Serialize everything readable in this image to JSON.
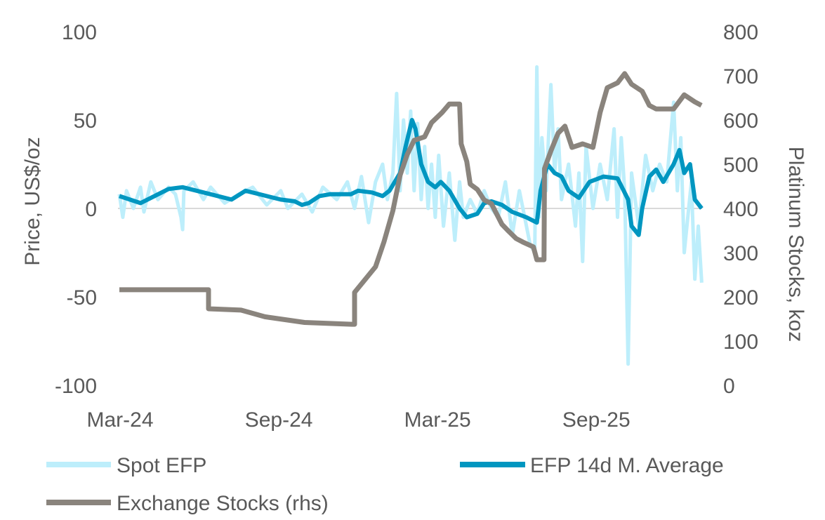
{
  "chart_data": {
    "type": "line",
    "x_unit": "months since Mar-24",
    "x_ticks": [
      {
        "label": "Mar-24",
        "m": 0
      },
      {
        "label": "Sep-24",
        "m": 6
      },
      {
        "label": "Mar-25",
        "m": 12
      },
      {
        "label": "Sep-25",
        "m": 18
      }
    ],
    "xlim": [
      0,
      22
    ],
    "ylabel": "Price, US$/oz",
    "ylim": [
      -100,
      100
    ],
    "y_ticks": [
      {
        "label": "100",
        "v": 100
      },
      {
        "label": "50",
        "v": 50
      },
      {
        "label": "0",
        "v": 0
      },
      {
        "label": "-50",
        "v": -50
      },
      {
        "label": "-100",
        "v": -100
      }
    ],
    "y2label": "Platinum Stocks, koz",
    "y2lim": [
      0,
      800
    ],
    "y2_ticks": [
      {
        "label": "800",
        "v": 800
      },
      {
        "label": "700",
        "v": 700
      },
      {
        "label": "600",
        "v": 600
      },
      {
        "label": "500",
        "v": 500
      },
      {
        "label": "400",
        "v": 400
      },
      {
        "label": "300",
        "v": 300
      },
      {
        "label": "200",
        "v": 200
      },
      {
        "label": "100",
        "v": 100
      },
      {
        "label": "0",
        "v": 0
      }
    ],
    "legend_position": "bottom",
    "series": [
      {
        "name": "Spot EFP",
        "axis": "left",
        "color": "#bdeefb",
        "points": [
          [
            0,
            8
          ],
          [
            0.13,
            -5
          ],
          [
            0.27,
            10
          ],
          [
            0.53,
            0
          ],
          [
            0.8,
            12
          ],
          [
            0.93,
            -2
          ],
          [
            1.19,
            15
          ],
          [
            1.46,
            5
          ],
          [
            1.86,
            12
          ],
          [
            2.12,
            8
          ],
          [
            2.33,
            -5
          ],
          [
            2.39,
            -12
          ],
          [
            2.44,
            10
          ],
          [
            2.79,
            15
          ],
          [
            3.18,
            5
          ],
          [
            3.45,
            12
          ],
          [
            3.98,
            3
          ],
          [
            4.51,
            8
          ],
          [
            5.04,
            12
          ],
          [
            5.57,
            2
          ],
          [
            6.1,
            10
          ],
          [
            6.37,
            0
          ],
          [
            6.9,
            8
          ],
          [
            7.29,
            -2
          ],
          [
            7.69,
            12
          ],
          [
            8.22,
            5
          ],
          [
            8.62,
            15
          ],
          [
            8.89,
            0
          ],
          [
            9.15,
            18
          ],
          [
            9.42,
            -8
          ],
          [
            9.68,
            15
          ],
          [
            9.95,
            25
          ],
          [
            10.13,
            5
          ],
          [
            10.34,
            20
          ],
          [
            10.48,
            65
          ],
          [
            10.61,
            10
          ],
          [
            10.74,
            50
          ],
          [
            10.88,
            20
          ],
          [
            11.01,
            55
          ],
          [
            11.14,
            10
          ],
          [
            11.27,
            48
          ],
          [
            11.41,
            5
          ],
          [
            11.54,
            35
          ],
          [
            11.67,
            0
          ],
          [
            11.8,
            25
          ],
          [
            11.94,
            -5
          ],
          [
            12.07,
            30
          ],
          [
            12.25,
            -10
          ],
          [
            12.47,
            20
          ],
          [
            12.68,
            -18
          ],
          [
            12.86,
            15
          ],
          [
            13.0,
            -5
          ],
          [
            13.26,
            5
          ],
          [
            13.53,
            -3
          ],
          [
            13.79,
            10
          ],
          [
            14.06,
            0
          ],
          [
            14.32,
            -5
          ],
          [
            14.59,
            15
          ],
          [
            14.85,
            -15
          ],
          [
            15.12,
            10
          ],
          [
            15.52,
            -20
          ],
          [
            15.7,
            -25
          ],
          [
            15.78,
            80
          ],
          [
            15.86,
            -5
          ],
          [
            15.97,
            40
          ],
          [
            16.13,
            10
          ],
          [
            16.31,
            70
          ],
          [
            16.45,
            20
          ],
          [
            16.58,
            45
          ],
          [
            16.71,
            5
          ],
          [
            16.98,
            25
          ],
          [
            17.24,
            -10
          ],
          [
            17.37,
            20
          ],
          [
            17.51,
            -30
          ],
          [
            17.64,
            35
          ],
          [
            17.9,
            0
          ],
          [
            18.17,
            25
          ],
          [
            18.44,
            5
          ],
          [
            18.7,
            45
          ],
          [
            18.83,
            -5
          ],
          [
            18.97,
            40
          ],
          [
            19.1,
            10
          ],
          [
            19.23,
            -88
          ],
          [
            19.36,
            20
          ],
          [
            19.63,
            -10
          ],
          [
            19.89,
            30
          ],
          [
            20.16,
            10
          ],
          [
            20.42,
            25
          ],
          [
            20.69,
            15
          ],
          [
            20.95,
            60
          ],
          [
            21.09,
            10
          ],
          [
            21.22,
            40
          ],
          [
            21.35,
            -25
          ],
          [
            21.62,
            15
          ],
          [
            21.75,
            -40
          ],
          [
            21.88,
            -10
          ],
          [
            22.01,
            -42
          ]
        ]
      },
      {
        "name": "EFP 14d M. Average",
        "axis": "left",
        "color": "#0096c0",
        "points": [
          [
            0,
            7
          ],
          [
            0.8,
            3
          ],
          [
            1.86,
            11
          ],
          [
            2.39,
            12
          ],
          [
            3.45,
            8
          ],
          [
            4.24,
            5
          ],
          [
            4.77,
            10
          ],
          [
            5.57,
            7
          ],
          [
            6.1,
            5
          ],
          [
            6.63,
            4
          ],
          [
            6.9,
            2
          ],
          [
            7.16,
            3
          ],
          [
            7.56,
            7
          ],
          [
            7.96,
            8
          ],
          [
            8.75,
            8
          ],
          [
            9.02,
            10
          ],
          [
            9.55,
            9
          ],
          [
            9.95,
            7
          ],
          [
            10.21,
            10
          ],
          [
            10.61,
            20
          ],
          [
            10.82,
            35
          ],
          [
            11.06,
            50
          ],
          [
            11.19,
            45
          ],
          [
            11.41,
            25
          ],
          [
            11.67,
            15
          ],
          [
            11.94,
            12
          ],
          [
            12.15,
            15
          ],
          [
            12.47,
            10
          ],
          [
            12.86,
            0
          ],
          [
            13.13,
            -5
          ],
          [
            13.53,
            -3
          ],
          [
            13.79,
            3
          ],
          [
            14.06,
            4
          ],
          [
            14.46,
            2
          ],
          [
            14.85,
            -2
          ],
          [
            15.38,
            -5
          ],
          [
            15.78,
            -8
          ],
          [
            15.92,
            10
          ],
          [
            16.18,
            25
          ],
          [
            16.45,
            20
          ],
          [
            16.71,
            18
          ],
          [
            16.98,
            10
          ],
          [
            17.37,
            6
          ],
          [
            17.77,
            15
          ],
          [
            18.3,
            18
          ],
          [
            18.83,
            17
          ],
          [
            19.23,
            5
          ],
          [
            19.36,
            -10
          ],
          [
            19.63,
            -15
          ],
          [
            19.76,
            0
          ],
          [
            20.03,
            18
          ],
          [
            20.29,
            22
          ],
          [
            20.56,
            15
          ],
          [
            20.95,
            25
          ],
          [
            21.17,
            33
          ],
          [
            21.35,
            20
          ],
          [
            21.57,
            25
          ],
          [
            21.75,
            5
          ],
          [
            22.01,
            0
          ]
        ]
      },
      {
        "name": "Exchange Stocks (rhs)",
        "axis": "right",
        "color": "#8a847d",
        "points": [
          [
            0,
            216
          ],
          [
            3.37,
            216
          ],
          [
            3.37,
            173
          ],
          [
            4.6,
            170
          ],
          [
            5.5,
            155
          ],
          [
            7.0,
            142
          ],
          [
            8.8,
            138
          ],
          [
            8.89,
            138
          ],
          [
            8.89,
            210
          ],
          [
            9.3,
            240
          ],
          [
            9.68,
            268
          ],
          [
            10.0,
            324
          ],
          [
            10.34,
            395
          ],
          [
            10.61,
            475
          ],
          [
            10.88,
            522
          ],
          [
            11.14,
            554
          ],
          [
            11.54,
            562
          ],
          [
            11.8,
            594
          ],
          [
            12.2,
            617
          ],
          [
            12.47,
            636
          ],
          [
            12.86,
            636
          ],
          [
            12.92,
            546
          ],
          [
            13.13,
            506
          ],
          [
            13.26,
            455
          ],
          [
            13.53,
            443
          ],
          [
            13.79,
            419
          ],
          [
            14.06,
            411
          ],
          [
            14.46,
            364
          ],
          [
            14.72,
            348
          ],
          [
            14.99,
            332
          ],
          [
            15.25,
            324
          ],
          [
            15.65,
            313
          ],
          [
            15.78,
            284
          ],
          [
            16.05,
            284
          ],
          [
            16.07,
            490
          ],
          [
            16.31,
            530
          ],
          [
            16.58,
            570
          ],
          [
            16.84,
            586
          ],
          [
            17.11,
            538
          ],
          [
            17.51,
            546
          ],
          [
            17.9,
            538
          ],
          [
            18.17,
            617
          ],
          [
            18.44,
            673
          ],
          [
            18.83,
            684
          ],
          [
            19.1,
            705
          ],
          [
            19.36,
            681
          ],
          [
            19.76,
            665
          ],
          [
            20.03,
            633
          ],
          [
            20.29,
            625
          ],
          [
            20.95,
            625
          ],
          [
            21.35,
            657
          ],
          [
            21.75,
            641
          ],
          [
            22.0,
            633
          ]
        ]
      }
    ]
  }
}
